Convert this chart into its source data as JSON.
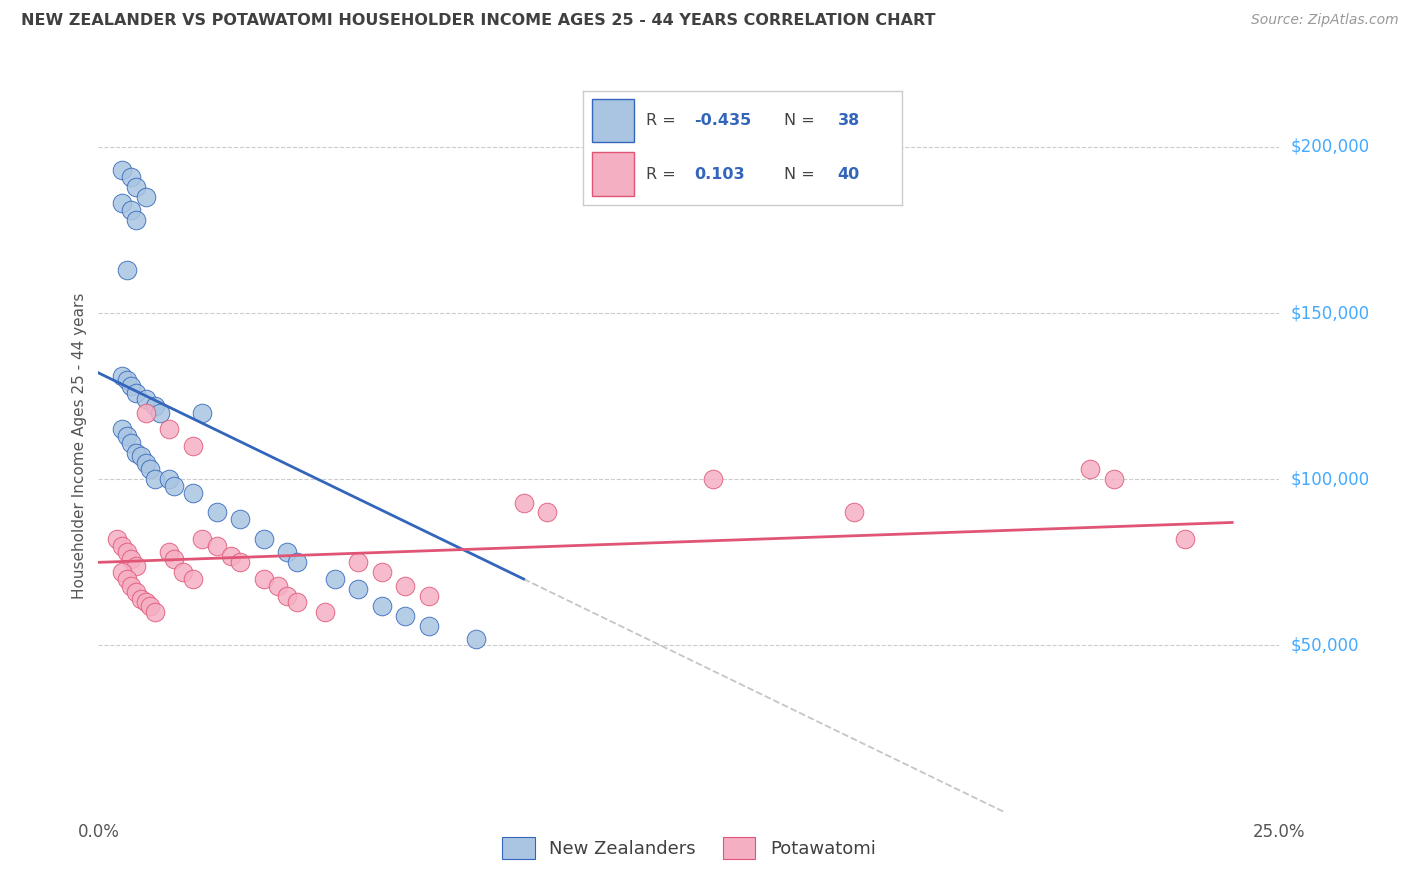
{
  "title": "NEW ZEALANDER VS POTAWATOMI HOUSEHOLDER INCOME AGES 25 - 44 YEARS CORRELATION CHART",
  "source": "Source: ZipAtlas.com",
  "ylabel": "Householder Income Ages 25 - 44 years",
  "xlim": [
    0.0,
    0.25
  ],
  "ylim": [
    0,
    220000
  ],
  "x_ticks": [
    0.0,
    0.05,
    0.1,
    0.15,
    0.2,
    0.25
  ],
  "y_ticks_right": [
    50000,
    100000,
    150000,
    200000
  ],
  "y_tick_labels_right": [
    "$50,000",
    "$100,000",
    "$150,000",
    "$200,000"
  ],
  "legend_label1": "New Zealanders",
  "legend_label2": "Potawatomi",
  "R1": "-0.435",
  "N1": "38",
  "R2": "0.103",
  "N2": "40",
  "color_blue": "#aac5e2",
  "color_pink": "#f5afc3",
  "line_blue": "#3366bb",
  "line_pink": "#e05575",
  "line_gray_dashed": "#bbbbbb",
  "grid_color": "#cccccc",
  "background_color": "#ffffff",
  "title_color": "#404040",
  "source_color": "#999999",
  "right_label_color": "#44aaff",
  "nz_x": [
    0.005,
    0.007,
    0.008,
    0.01,
    0.005,
    0.007,
    0.008,
    0.006,
    0.005,
    0.006,
    0.007,
    0.008,
    0.01,
    0.012,
    0.013,
    0.005,
    0.006,
    0.007,
    0.008,
    0.009,
    0.01,
    0.011,
    0.012,
    0.015,
    0.016,
    0.02,
    0.022,
    0.025,
    0.03,
    0.035,
    0.04,
    0.042,
    0.05,
    0.055,
    0.06,
    0.065,
    0.07,
    0.08
  ],
  "nz_y": [
    193000,
    191000,
    188000,
    185000,
    183000,
    181000,
    178000,
    163000,
    131000,
    130000,
    128000,
    126000,
    124000,
    122000,
    120000,
    115000,
    113000,
    111000,
    108000,
    107000,
    105000,
    103000,
    100000,
    100000,
    98000,
    96000,
    120000,
    90000,
    88000,
    82000,
    78000,
    75000,
    70000,
    67000,
    62000,
    59000,
    56000,
    52000
  ],
  "pot_x": [
    0.004,
    0.005,
    0.006,
    0.007,
    0.008,
    0.005,
    0.006,
    0.007,
    0.008,
    0.009,
    0.01,
    0.011,
    0.012,
    0.015,
    0.016,
    0.018,
    0.02,
    0.022,
    0.025,
    0.028,
    0.03,
    0.035,
    0.038,
    0.04,
    0.042,
    0.048,
    0.055,
    0.06,
    0.065,
    0.07,
    0.09,
    0.095,
    0.13,
    0.16,
    0.21,
    0.215,
    0.23,
    0.01,
    0.015,
    0.02
  ],
  "pot_y": [
    82000,
    80000,
    78000,
    76000,
    74000,
    72000,
    70000,
    68000,
    66000,
    64000,
    63000,
    62000,
    60000,
    78000,
    76000,
    72000,
    70000,
    82000,
    80000,
    77000,
    75000,
    70000,
    68000,
    65000,
    63000,
    60000,
    75000,
    72000,
    68000,
    65000,
    93000,
    90000,
    100000,
    90000,
    103000,
    100000,
    82000,
    120000,
    115000,
    110000
  ]
}
